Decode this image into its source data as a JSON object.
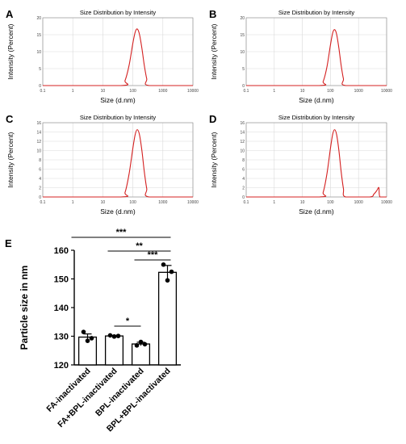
{
  "chart_data": [
    {
      "panel": "A",
      "type": "line",
      "title": "Size Distribution by Intensity",
      "xlabel": "Size (d.nm)",
      "ylabel": "Intensity (Percent)",
      "x_scale": "log",
      "xlim": [
        0.1,
        10000
      ],
      "x_ticks": [
        "0.1",
        "1",
        "10",
        "100",
        "1000",
        "10000"
      ],
      "ylim": [
        0,
        20
      ],
      "y_ticks": [
        "0",
        "5",
        "10",
        "15",
        "20"
      ],
      "line_color": "#d42020",
      "series": [
        {
          "x": [
            0.1,
            40,
            55,
            75,
            100,
            120,
            140,
            165,
            200,
            240,
            290,
            350,
            10000
          ],
          "y": [
            0,
            0,
            1.5,
            6,
            12.5,
            15.8,
            16.7,
            15.2,
            11,
            6,
            2,
            0,
            0
          ]
        }
      ]
    },
    {
      "panel": "B",
      "type": "line",
      "title": "Size Distribution by Intensity",
      "xlabel": "Size (d.nm)",
      "ylabel": "Intensity (Percent)",
      "x_scale": "log",
      "xlim": [
        0.1,
        10000
      ],
      "x_ticks": [
        "0.1",
        "1",
        "10",
        "100",
        "1000",
        "10000"
      ],
      "ylim": [
        0,
        20
      ],
      "y_ticks": [
        "0",
        "5",
        "10",
        "15",
        "20"
      ],
      "line_color": "#d42020",
      "series": [
        {
          "x": [
            0.1,
            40,
            55,
            75,
            100,
            120,
            140,
            165,
            200,
            240,
            290,
            350,
            10000
          ],
          "y": [
            0,
            0,
            1.2,
            5.5,
            12,
            15.5,
            16.5,
            15.2,
            11,
            6,
            2,
            0,
            0
          ]
        }
      ]
    },
    {
      "panel": "C",
      "type": "line",
      "title": "Size Distribution by Intensity",
      "xlabel": "Size (d.nm)",
      "ylabel": "Intensity (Percent)",
      "x_scale": "log",
      "xlim": [
        0.1,
        10000
      ],
      "x_ticks": [
        "0.1",
        "1",
        "10",
        "100",
        "1000",
        "10000"
      ],
      "ylim": [
        0,
        16
      ],
      "y_ticks": [
        "0",
        "2",
        "4",
        "6",
        "8",
        "10",
        "12",
        "14",
        "16"
      ],
      "line_color": "#d42020",
      "series": [
        {
          "x": [
            0.1,
            40,
            55,
            75,
            100,
            120,
            140,
            165,
            200,
            240,
            290,
            350,
            10000
          ],
          "y": [
            0,
            0,
            1,
            5,
            10.5,
            13.5,
            14.5,
            13.5,
            10,
            5.5,
            1.8,
            0,
            0
          ]
        }
      ]
    },
    {
      "panel": "D",
      "type": "line",
      "title": "Size Distribution by Intensity",
      "xlabel": "Size (d.nm)",
      "ylabel": "Intensity (Percent)",
      "x_scale": "log",
      "xlim": [
        0.1,
        10000
      ],
      "x_ticks": [
        "0.1",
        "1",
        "10",
        "100",
        "1000",
        "10000"
      ],
      "ylim": [
        0,
        16
      ],
      "y_ticks": [
        "0",
        "2",
        "4",
        "6",
        "8",
        "10",
        "12",
        "14",
        "16"
      ],
      "line_color": "#d42020",
      "series": [
        {
          "x": [
            0.1,
            40,
            55,
            75,
            100,
            120,
            140,
            165,
            200,
            240,
            290,
            350,
            2500,
            3500,
            4500,
            5300,
            5800,
            10000
          ],
          "y": [
            0,
            0,
            1,
            5,
            10.5,
            13.5,
            14.5,
            13.5,
            10,
            5.5,
            1.8,
            0,
            0,
            0.6,
            1.4,
            2,
            0,
            0
          ]
        }
      ]
    },
    {
      "panel": "E",
      "type": "bar",
      "ylabel": "Particle size in nm",
      "ylim": [
        120,
        160
      ],
      "y_ticks": [
        "120",
        "130",
        "140",
        "150",
        "160"
      ],
      "categories": [
        "FA-inactivated",
        "FA+BPL-inactivated",
        "BPL-inactivated",
        "BPL+BPL-inactivated"
      ],
      "values": [
        129.7,
        130.1,
        127.3,
        152.3
      ],
      "errors": [
        1.1,
        0.2,
        0.6,
        2.4
      ],
      "points": [
        [
          131.5,
          128.4,
          129.3
        ],
        [
          130.3,
          129.9,
          130.1
        ],
        [
          126.8,
          128.0,
          127.2
        ],
        [
          155.0,
          149.5,
          152.5
        ]
      ],
      "significance": [
        {
          "from": 0,
          "to": 3,
          "label": "***"
        },
        {
          "from": 1,
          "to": 3,
          "label": "**"
        },
        {
          "from": 2,
          "to": 3,
          "label": "***"
        },
        {
          "from": 1,
          "to": 2,
          "label": "*"
        }
      ]
    }
  ]
}
